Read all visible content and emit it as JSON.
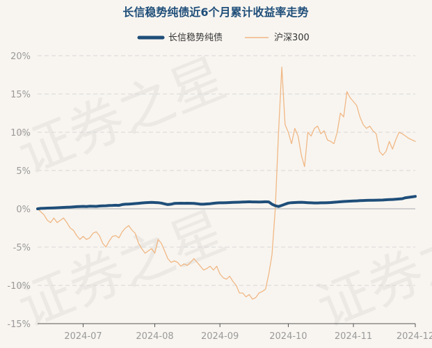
{
  "chart_data": {
    "type": "line",
    "title": "长信稳势纯债近6个月累计收益率走势",
    "legend_position": "top",
    "watermark": "证券之星",
    "y_ticks": [
      "20%",
      "15%",
      "10%",
      "5%",
      "0%",
      "-5%",
      "-10%",
      "-15%"
    ],
    "y_values": [
      20,
      15,
      10,
      5,
      0,
      -5,
      -10,
      -15
    ],
    "ylim": [
      -15,
      20
    ],
    "x_ticks": [
      "2024-07",
      "2024-08",
      "2024-09",
      "2024-10",
      "2024-11",
      "2024-12"
    ],
    "x_tick_index": [
      14,
      36,
      56,
      77,
      97,
      116
    ],
    "x_count": 117,
    "grid": true,
    "series": [
      {
        "name": "长信稳势纯债",
        "color": "#1f4e79",
        "values": [
          0.0,
          0.05,
          0.07,
          0.09,
          0.1,
          0.12,
          0.14,
          0.16,
          0.18,
          0.2,
          0.22,
          0.25,
          0.28,
          0.3,
          0.32,
          0.3,
          0.34,
          0.33,
          0.32,
          0.36,
          0.38,
          0.4,
          0.44,
          0.45,
          0.46,
          0.45,
          0.55,
          0.6,
          0.62,
          0.65,
          0.68,
          0.72,
          0.76,
          0.8,
          0.82,
          0.84,
          0.82,
          0.8,
          0.75,
          0.65,
          0.55,
          0.6,
          0.7,
          0.72,
          0.73,
          0.72,
          0.73,
          0.72,
          0.7,
          0.66,
          0.6,
          0.6,
          0.64,
          0.66,
          0.72,
          0.76,
          0.78,
          0.78,
          0.8,
          0.82,
          0.84,
          0.85,
          0.86,
          0.88,
          0.9,
          0.92,
          0.9,
          0.9,
          0.88,
          0.9,
          0.92,
          0.9,
          0.6,
          0.4,
          0.3,
          0.45,
          0.6,
          0.75,
          0.8,
          0.82,
          0.84,
          0.85,
          0.83,
          0.8,
          0.78,
          0.76,
          0.76,
          0.78,
          0.78,
          0.8,
          0.82,
          0.85,
          0.88,
          0.92,
          0.95,
          0.98,
          1.0,
          1.02,
          1.04,
          1.06,
          1.08,
          1.1,
          1.12,
          1.12,
          1.13,
          1.14,
          1.15,
          1.18,
          1.2,
          1.22,
          1.25,
          1.28,
          1.32,
          1.45,
          1.5,
          1.55,
          1.62
        ]
      },
      {
        "name": "沪深300",
        "color": "#f0b784",
        "values": [
          0.0,
          -0.4,
          -0.8,
          -1.5,
          -1.8,
          -1.2,
          -1.8,
          -1.5,
          -1.2,
          -1.8,
          -2.5,
          -2.8,
          -3.5,
          -4.0,
          -3.6,
          -4.0,
          -3.8,
          -3.2,
          -3.0,
          -3.5,
          -4.5,
          -5.0,
          -4.2,
          -3.6,
          -3.5,
          -3.8,
          -3.0,
          -2.5,
          -2.2,
          -2.8,
          -3.2,
          -4.5,
          -5.2,
          -5.8,
          -5.5,
          -5.2,
          -5.8,
          -4.0,
          -4.5,
          -5.5,
          -6.5,
          -7.0,
          -6.8,
          -7.0,
          -7.5,
          -7.2,
          -7.4,
          -7.0,
          -6.5,
          -7.0,
          -7.5,
          -8.0,
          -7.8,
          -7.5,
          -8.0,
          -7.5,
          -8.5,
          -9.0,
          -9.2,
          -8.8,
          -9.5,
          -10.0,
          -11.0,
          -11.0,
          -11.5,
          -11.2,
          -11.8,
          -11.6,
          -11.0,
          -10.8,
          -10.5,
          -8.5,
          -6.0,
          0.0,
          10.0,
          18.5,
          11.0,
          10.0,
          8.5,
          10.5,
          9.5,
          7.0,
          5.5,
          10.0,
          9.5,
          10.5,
          10.8,
          9.8,
          10.2,
          9.0,
          8.8,
          8.5,
          10.0,
          12.5,
          12.0,
          15.3,
          14.5,
          14.0,
          13.5,
          12.0,
          11.0,
          10.5,
          10.8,
          10.2,
          9.8,
          7.5,
          7.0,
          7.5,
          8.8,
          7.8,
          9.0,
          10.0,
          9.8,
          9.5,
          9.2,
          9.0,
          8.8
        ]
      }
    ]
  }
}
